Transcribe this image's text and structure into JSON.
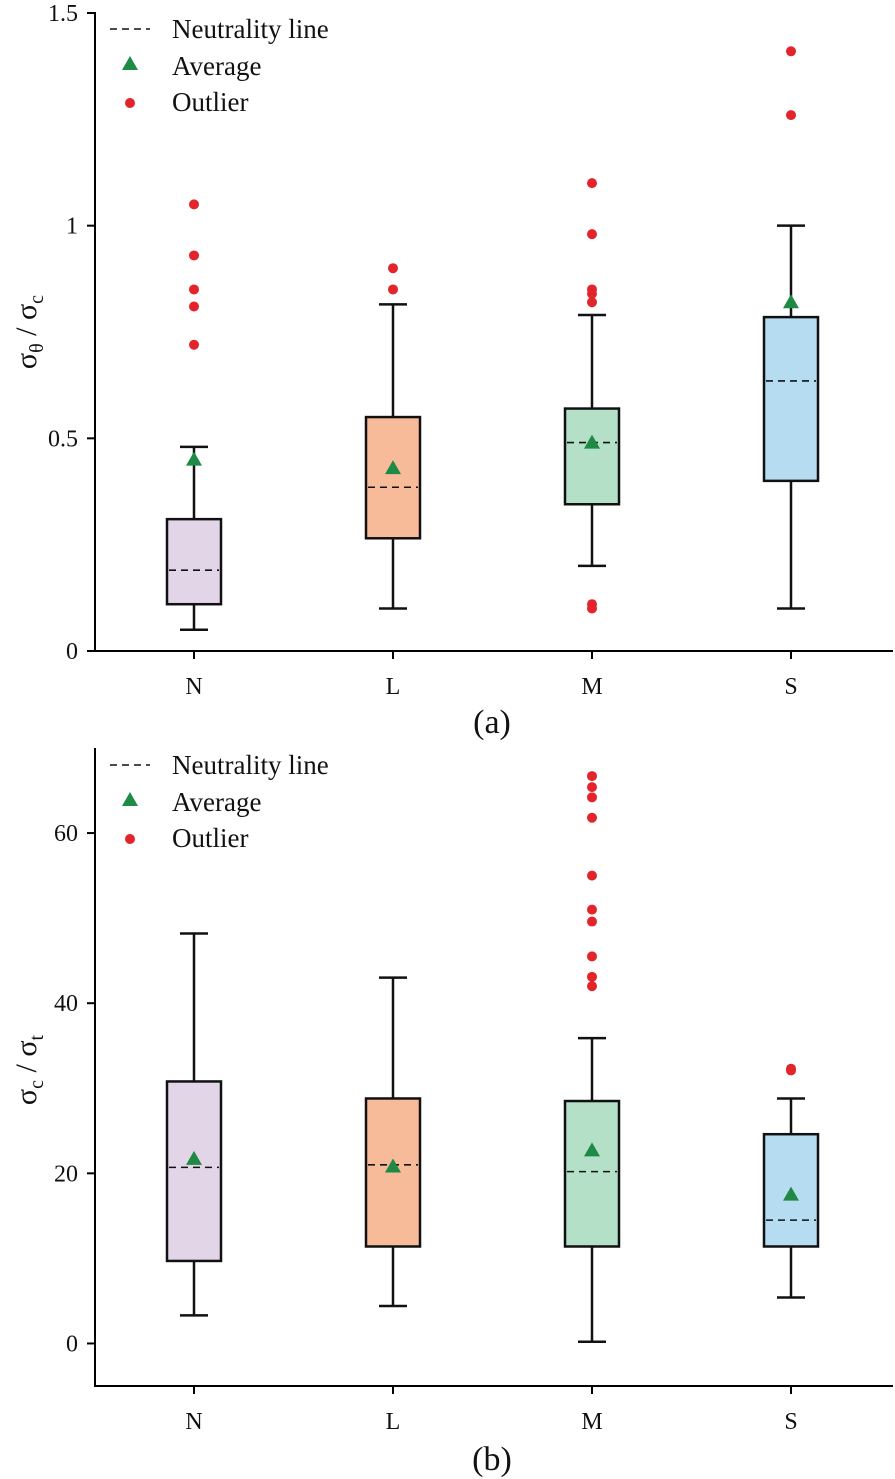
{
  "legend": {
    "neutrality": "Neutrality line",
    "average": "Average",
    "outlier": "Outlier"
  },
  "colors": {
    "N": "#e3d5e8",
    "L": "#f8bb9a",
    "M": "#b4e0c7",
    "S": "#b6dcf2",
    "average_marker": "#1e8a45",
    "outlier_marker": "#e3242b"
  },
  "chart_data": [
    {
      "type": "box",
      "panel": "(a)",
      "ylabel_main": "σ",
      "ylabel_sub1": "θ",
      "ylabel_sep": " / ",
      "ylabel_main2": "σ",
      "ylabel_sub2": "c",
      "ylim": [
        0,
        1.5
      ],
      "yticks": [
        {
          "value": 0,
          "label": "0"
        },
        {
          "value": 0.5,
          "label": "0.5"
        },
        {
          "value": 1,
          "label": "1"
        },
        {
          "value": 1.5,
          "label": "1.5"
        }
      ],
      "categories": [
        "N",
        "L",
        "M",
        "S"
      ],
      "boxes": [
        {
          "category": "N",
          "whisker_low": 0.05,
          "q1": 0.11,
          "median": 0.19,
          "q3": 0.31,
          "whisker_high": 0.48,
          "mean": 0.45,
          "outliers": [
            0.72,
            0.81,
            0.85,
            0.93,
            1.05
          ]
        },
        {
          "category": "L",
          "whisker_low": 0.1,
          "q1": 0.265,
          "median": 0.385,
          "q3": 0.55,
          "whisker_high": 0.815,
          "mean": 0.43,
          "outliers": [
            0.85,
            0.9
          ]
        },
        {
          "category": "M",
          "whisker_low": 0.2,
          "q1": 0.345,
          "median": 0.49,
          "q3": 0.57,
          "whisker_high": 0.79,
          "mean": 0.49,
          "outliers": [
            0.1,
            0.11,
            0.82,
            0.84,
            0.85,
            0.98,
            1.1
          ]
        },
        {
          "category": "S",
          "whisker_low": 0.1,
          "q1": 0.4,
          "median": 0.635,
          "q3": 0.785,
          "whisker_high": 1.0,
          "mean": 0.82,
          "outliers": [
            1.26,
            1.41
          ]
        }
      ]
    },
    {
      "type": "box",
      "panel": "(b)",
      "ylabel_main": "σ",
      "ylabel_sub1": "c",
      "ylabel_sep": " / ",
      "ylabel_main2": "σ",
      "ylabel_sub2": "t",
      "ylim": [
        -5,
        70
      ],
      "yticks": [
        {
          "value": 0,
          "label": "0"
        },
        {
          "value": 20,
          "label": "20"
        },
        {
          "value": 40,
          "label": "40"
        },
        {
          "value": 60,
          "label": "60"
        }
      ],
      "categories": [
        "N",
        "L",
        "M",
        "S"
      ],
      "boxes": [
        {
          "category": "N",
          "whisker_low": 3.3,
          "q1": 9.7,
          "median": 20.7,
          "q3": 30.8,
          "whisker_high": 48.2,
          "mean": 21.7,
          "outliers": []
        },
        {
          "category": "L",
          "whisker_low": 4.4,
          "q1": 11.4,
          "median": 21.0,
          "q3": 28.8,
          "whisker_high": 43.0,
          "mean": 20.8,
          "outliers": []
        },
        {
          "category": "M",
          "whisker_low": 0.2,
          "q1": 11.4,
          "median": 20.2,
          "q3": 28.5,
          "whisker_high": 35.9,
          "mean": 22.7,
          "outliers": [
            42.0,
            43.1,
            45.5,
            49.6,
            51.0,
            55.0,
            61.8,
            64.2,
            65.4,
            66.7
          ]
        },
        {
          "category": "S",
          "whisker_low": 5.4,
          "q1": 11.4,
          "median": 14.5,
          "q3": 24.6,
          "whisker_high": 28.8,
          "mean": 17.5,
          "outliers": [
            32.1,
            32.3
          ]
        }
      ]
    }
  ]
}
